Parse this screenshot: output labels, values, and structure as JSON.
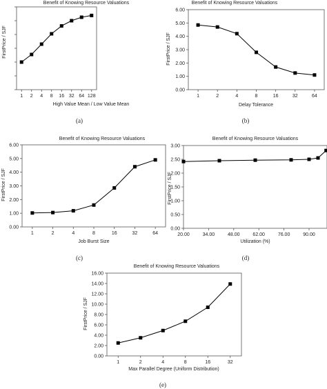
{
  "figure": {
    "colors": {
      "line": "#000000",
      "marker": "#000000",
      "plot_bg": "#ffffff",
      "axis": "#555555"
    }
  },
  "chart_data": [
    {
      "id": "a",
      "type": "line",
      "title": "Benefit of Knowing Resource Valuations",
      "xlabel": "High Value Mean / Low Value Mean",
      "ylabel": "FirstPrice / SJF",
      "caption": "(a)",
      "x_scale": "categorical",
      "categories": [
        "1",
        "2",
        "4",
        "8",
        "16",
        "32",
        "64",
        "128"
      ],
      "series": [
        {
          "values": [
            2.0,
            2.55,
            3.3,
            4.05,
            4.62,
            5.0,
            5.25,
            5.38
          ]
        }
      ],
      "ylim": [
        0,
        6
      ],
      "yticks": [
        0,
        1,
        2,
        3,
        4,
        5,
        6
      ],
      "ytick_labels": [
        "",
        "",
        "",
        "",
        "",
        "",
        ""
      ],
      "grid": false,
      "legend": "none"
    },
    {
      "id": "b",
      "type": "line",
      "title": "Benefit of Knowing Resource Valuations",
      "xlabel": "Delay Tolerance",
      "ylabel": "FirstPrice / SJF",
      "caption": "(b)",
      "x_scale": "categorical",
      "categories": [
        "1",
        "2",
        "4",
        "8",
        "16",
        "32",
        "64"
      ],
      "series": [
        {
          "values": [
            4.85,
            4.7,
            4.2,
            2.8,
            1.7,
            1.25,
            1.1
          ]
        }
      ],
      "ylim": [
        0,
        6
      ],
      "yticks": [
        0,
        1,
        2,
        3,
        4,
        5,
        6
      ],
      "ytick_labels": [
        "0.00",
        "1.00",
        "2.00",
        "3.00",
        "4.00",
        "5.00",
        "6.00"
      ],
      "grid": false,
      "legend": "none"
    },
    {
      "id": "c",
      "type": "line",
      "title": "Benefit of Knowing Resource Valuations",
      "xlabel": "Job Burst Size",
      "ylabel": "FirstPrice / SJF",
      "caption": "(c)",
      "x_scale": "categorical",
      "categories": [
        "1",
        "2",
        "4",
        "8",
        "16",
        "32",
        "64"
      ],
      "series": [
        {
          "values": [
            1.02,
            1.05,
            1.18,
            1.6,
            2.85,
            4.4,
            4.9
          ]
        }
      ],
      "ylim": [
        0,
        6
      ],
      "yticks": [
        0,
        1,
        2,
        3,
        4,
        5,
        6
      ],
      "ytick_labels": [
        "0.00",
        "1.00",
        "2.00",
        "3.00",
        "4.00",
        "5.00",
        "6.00"
      ],
      "grid": false,
      "legend": "none"
    },
    {
      "id": "d",
      "type": "line",
      "title": "Benefit of Knowing Resource Valuations",
      "xlabel": "Utilization (%)",
      "ylabel": "FirstPrice / SJF",
      "caption": "(d)",
      "x_scale": "linear",
      "xlim": [
        20,
        100
      ],
      "xticks": [
        20,
        34,
        48,
        62,
        76,
        90
      ],
      "xtick_labels": [
        "20.00",
        "34.00",
        "48.00",
        "62.00",
        "76.00",
        "90.00"
      ],
      "series": [
        {
          "x": [
            20,
            40,
            60,
            80,
            90,
            95,
            99.5
          ],
          "values": [
            2.42,
            2.45,
            2.47,
            2.48,
            2.5,
            2.55,
            2.82
          ]
        }
      ],
      "ylim": [
        0,
        3
      ],
      "yticks": [
        0,
        0.5,
        1,
        1.5,
        2,
        2.5,
        3
      ],
      "ytick_labels": [
        "0.00",
        "0.50",
        "1.00",
        "1.50",
        "2.00",
        "2.50",
        "3.00"
      ],
      "grid": false,
      "legend": "none"
    },
    {
      "id": "e",
      "type": "line",
      "title": "Benefit of Knowing Resource Valuations",
      "xlabel": "Max Parallel Degree (Uniform Distribution)",
      "ylabel": "FirstPrice / SJF",
      "caption": "(e)",
      "x_scale": "categorical",
      "categories": [
        "1",
        "2",
        "4",
        "8",
        "16",
        "32"
      ],
      "series": [
        {
          "values": [
            2.5,
            3.5,
            4.9,
            6.7,
            9.4,
            13.9
          ]
        }
      ],
      "ylim": [
        0,
        16
      ],
      "yticks": [
        0,
        2,
        4,
        6,
        8,
        10,
        12,
        14,
        16
      ],
      "ytick_labels": [
        "0.00",
        "2.00",
        "4.00",
        "6.00",
        "8.00",
        "10.00",
        "12.00",
        "14.00",
        "16.00"
      ],
      "grid": false,
      "legend": "none"
    }
  ]
}
